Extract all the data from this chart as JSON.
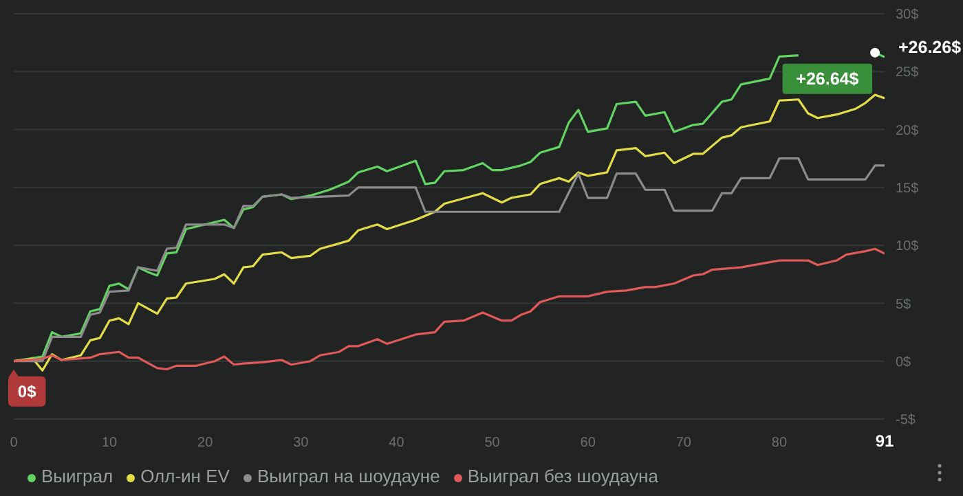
{
  "chart_data": {
    "type": "line",
    "xlim": [
      0,
      91
    ],
    "xticks": [
      0,
      10,
      20,
      30,
      40,
      50,
      60,
      70,
      80,
      91
    ],
    "ylim": [
      -5,
      30
    ],
    "yticks": [
      {
        "value": -5,
        "label": "-5$"
      },
      {
        "value": 0,
        "label": "0$"
      },
      {
        "value": 5,
        "label": "5$"
      },
      {
        "value": 10,
        "label": "10$"
      },
      {
        "value": 15,
        "label": "15$"
      },
      {
        "value": 20,
        "label": "20$"
      },
      {
        "value": 25,
        "label": "25$"
      },
      {
        "value": 30,
        "label": "30$"
      }
    ],
    "grid": "y",
    "legend": "bottom left",
    "marker": "none",
    "line_style": "solid",
    "annotations": [
      {
        "text": "0$",
        "x": 0,
        "y": 0
      },
      {
        "text": "+26.64$",
        "x": 90,
        "y": 26.64
      },
      {
        "text": "+26.26$",
        "x": 91,
        "y": 26.26
      }
    ],
    "series": [
      {
        "name": "Выиграл",
        "color": "#63d463",
        "x": [
          0,
          3,
          4,
          5,
          7,
          8,
          9,
          10,
          11,
          12,
          13,
          14,
          15,
          16,
          17,
          18,
          22,
          23,
          24,
          25,
          26,
          28,
          29,
          31,
          33,
          35,
          36,
          38,
          39,
          42,
          43,
          44,
          45,
          47,
          49,
          50,
          51,
          53,
          54,
          55,
          57,
          58,
          59,
          60,
          62,
          63,
          65,
          66,
          68,
          69,
          71,
          72,
          74,
          75,
          76,
          79,
          80,
          82,
          84,
          88,
          90,
          91
        ],
        "values": [
          0,
          0.4,
          2.5,
          2.1,
          2.4,
          4.3,
          4.5,
          6.5,
          6.7,
          6.2,
          8.1,
          7.7,
          7.4,
          9.3,
          9.4,
          11.4,
          12.2,
          11.5,
          13.1,
          13.3,
          14.2,
          14.4,
          14,
          14.3,
          14.8,
          15.5,
          16.3,
          16.8,
          16.4,
          17.3,
          15.3,
          15.4,
          16.4,
          16.5,
          17.1,
          16.5,
          16.5,
          16.9,
          17.2,
          18,
          18.5,
          20.6,
          21.7,
          19.8,
          20.1,
          22.2,
          22.4,
          21.2,
          21.5,
          19.8,
          20.4,
          20.5,
          22.4,
          22.6,
          23.9,
          24.4,
          26.3,
          26.4,
          null,
          null,
          26.64,
          26.26
        ]
      },
      {
        "name": "Олл-ин EV",
        "color": "#e3dc4a",
        "x": [
          0,
          2,
          3,
          4,
          5,
          7,
          8,
          9,
          10,
          11,
          12,
          13,
          15,
          16,
          17,
          18,
          21,
          22,
          23,
          24,
          25,
          26,
          28,
          29,
          31,
          32,
          35,
          36,
          38,
          39,
          42,
          44,
          45,
          49,
          51,
          52,
          54,
          55,
          57,
          58,
          59,
          60,
          62,
          63,
          65,
          66,
          68,
          69,
          71,
          72,
          74,
          75,
          76,
          79,
          80,
          82,
          83,
          84,
          86,
          88,
          89,
          90,
          91
        ],
        "values": [
          0,
          0.2,
          -0.8,
          0.6,
          0.1,
          0.5,
          1.8,
          2,
          3.5,
          3.7,
          3.2,
          5,
          4.1,
          5.4,
          5.5,
          6.7,
          7.1,
          7.5,
          6.7,
          8.1,
          8.2,
          9.2,
          9.4,
          8.9,
          9.1,
          9.7,
          10.4,
          11.3,
          11.8,
          11.4,
          12.2,
          12.9,
          13.6,
          14.5,
          13.7,
          14.1,
          14.4,
          15.3,
          15.8,
          15.5,
          16.3,
          16,
          16.3,
          18.2,
          18.4,
          17.7,
          18,
          17.1,
          17.9,
          17.9,
          19.3,
          19.5,
          20.2,
          20.7,
          22.5,
          22.6,
          21.4,
          21,
          21.3,
          21.8,
          22.3,
          23,
          22.7
        ]
      },
      {
        "name": "Выиграл на шоудауне",
        "color": "#8c8c8c",
        "x": [
          0,
          3,
          4,
          7,
          8,
          9,
          10,
          12,
          13,
          15,
          16,
          17,
          18,
          22,
          23,
          24,
          25,
          26,
          28,
          29,
          35,
          36,
          42,
          43,
          57,
          59,
          60,
          62,
          63,
          65,
          66,
          68,
          69,
          73,
          74,
          75,
          76,
          79,
          80,
          82,
          83,
          89,
          90,
          91
        ],
        "values": [
          0,
          0,
          2.1,
          2.1,
          4,
          4.2,
          6,
          6.1,
          8.1,
          7.8,
          9.7,
          9.8,
          11.8,
          11.8,
          11.5,
          13.4,
          13.4,
          14.2,
          14.4,
          14.1,
          14.3,
          15,
          15,
          12.9,
          12.9,
          16.2,
          14.1,
          14.1,
          16.2,
          16.2,
          14.8,
          14.8,
          13,
          13,
          14.5,
          14.5,
          15.8,
          15.8,
          17.5,
          17.5,
          15.7,
          15.7,
          16.9,
          16.9
        ]
      },
      {
        "name": "Выиграл без шоудауна",
        "color": "#e05a5a",
        "x": [
          0,
          3,
          4,
          5,
          8,
          9,
          11,
          12,
          13,
          15,
          16,
          17,
          19,
          21,
          22,
          23,
          24,
          26,
          28,
          29,
          31,
          32,
          34,
          35,
          36,
          38,
          39,
          42,
          44,
          45,
          47,
          49,
          51,
          52,
          53,
          54,
          55,
          57,
          60,
          62,
          64,
          66,
          67,
          69,
          71,
          72,
          73,
          76,
          78,
          80,
          81,
          83,
          84,
          86,
          87,
          89,
          90,
          91
        ],
        "values": [
          0,
          0.2,
          0.5,
          0.1,
          0.3,
          0.6,
          0.8,
          0.3,
          0.3,
          -0.6,
          -0.7,
          -0.4,
          -0.4,
          0,
          0.4,
          -0.3,
          -0.2,
          -0.1,
          0.1,
          -0.3,
          0,
          0.5,
          0.8,
          1.3,
          1.3,
          1.9,
          1.5,
          2.3,
          2.5,
          3.4,
          3.5,
          4.2,
          3.5,
          3.5,
          4,
          4.3,
          5.1,
          5.6,
          5.6,
          6,
          6.1,
          6.4,
          6.4,
          6.7,
          7.4,
          7.5,
          7.9,
          8.1,
          8.4,
          8.7,
          8.7,
          8.7,
          8.3,
          8.7,
          9.2,
          9.5,
          9.7,
          9.3
        ]
      }
    ]
  }
}
